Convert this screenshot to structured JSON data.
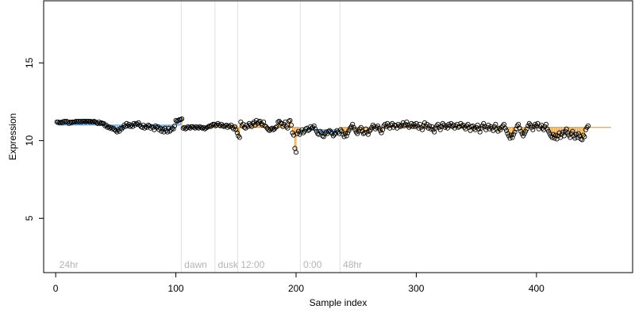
{
  "chart_data": {
    "type": "scatter",
    "xlabel": "Sample index",
    "ylabel": "Expression",
    "xlim": [
      -10,
      480
    ],
    "ylim": [
      1.5,
      19
    ],
    "x_ticks": [
      {
        "value": 0,
        "label": "0"
      },
      {
        "value": 100,
        "label": "100"
      },
      {
        "value": 200,
        "label": "200"
      },
      {
        "value": 300,
        "label": "300"
      },
      {
        "value": 400,
        "label": "400"
      }
    ],
    "y_ticks": [
      {
        "value": 5,
        "label": "5"
      },
      {
        "value": 10,
        "label": "10"
      },
      {
        "value": 15,
        "label": "15"
      }
    ],
    "grid": false,
    "segments": [
      {
        "label": "24hr",
        "start": 1,
        "end": 104
      },
      {
        "label": "dawn",
        "start": 105,
        "end": 132
      },
      {
        "label": "dusk",
        "start": 133,
        "end": 151
      },
      {
        "label": "12:00",
        "start": 152,
        "end": 203
      },
      {
        "label": "0:00",
        "start": 204,
        "end": 236
      },
      {
        "label": "48hr",
        "start": 237,
        "end": 462
      }
    ],
    "baselines": [
      {
        "start": 1,
        "end": 104,
        "value": 11.0
      },
      {
        "start": 105,
        "end": 132,
        "value": 10.85
      },
      {
        "start": 133,
        "end": 151,
        "value": 10.95
      },
      {
        "start": 152,
        "end": 203,
        "value": 10.85
      },
      {
        "start": 204,
        "end": 236,
        "value": 10.7
      },
      {
        "start": 237,
        "end": 462,
        "value": 10.85
      }
    ],
    "point_count": 462,
    "series": [
      {
        "y": [
          11.2,
          11.2,
          11.15,
          11.15,
          11.2,
          11.15,
          11.25,
          11.2,
          11.25,
          11.2,
          11.1,
          11.2,
          11.15,
          11.2,
          11.2,
          11.2,
          11.25,
          11.2,
          11.25,
          11.2,
          11.25,
          11.2,
          11.25,
          11.25,
          11.2,
          11.25,
          11.25,
          11.2,
          11.25,
          11.2,
          11.2,
          11.25,
          11.2,
          11.15,
          11.1,
          11.2,
          11.1,
          11.15,
          11.1,
          11.1,
          10.95,
          11.0,
          10.85,
          10.9,
          10.8,
          10.85,
          10.75,
          10.8,
          10.7,
          10.65,
          10.55,
          10.7,
          10.6,
          10.8,
          10.75,
          10.85,
          11.0,
          10.9,
          11.1,
          10.95,
          11.05,
          10.9,
          11.0,
          10.9,
          11.1,
          11.0,
          11.1,
          11.05,
          11.15,
          11.0,
          10.9,
          10.85,
          11.0,
          10.8,
          10.9,
          10.85,
          11.0,
          10.95,
          10.8,
          10.9,
          10.85,
          10.7,
          10.95,
          10.85,
          10.9,
          10.7,
          10.8,
          10.6,
          10.75,
          10.55,
          10.8,
          10.65,
          10.55,
          10.8,
          10.6,
          10.7,
          10.8,
          10.75,
          10.95,
          11.3,
          11.25,
          11.3,
          11.35,
          11.35,
          11.4,
          10.8,
          10.85,
          10.75,
          10.8,
          10.9,
          10.85,
          10.8,
          10.9,
          10.9,
          10.85,
          10.8,
          10.9,
          10.85,
          10.8,
          10.9,
          10.85,
          10.8,
          10.85,
          10.75,
          10.8,
          10.85,
          10.9,
          10.95,
          10.9,
          11.0,
          11.05,
          11.05,
          10.95,
          11.0,
          11.1,
          11.0,
          10.95,
          11.05,
          10.95,
          10.9,
          10.95,
          11.0,
          10.85,
          10.95,
          10.9,
          11.0,
          10.85,
          10.75,
          10.9,
          10.7,
          10.5,
          10.3,
          10.2,
          11.2,
          10.95,
          11.05,
          10.85,
          10.8,
          11.0,
          10.9,
          11.1,
          11.0,
          10.9,
          11.1,
          11.2,
          11.0,
          11.3,
          11.1,
          11.2,
          11.25,
          11.1,
          11.0,
          11.2,
          10.95,
          10.9,
          10.8,
          10.7,
          10.65,
          10.75,
          10.8,
          10.7,
          10.75,
          10.85,
          10.9,
          11.2,
          11.25,
          11.15,
          11.1,
          10.9,
          11.05,
          11.2,
          10.9,
          10.8,
          11.25,
          11.3,
          11.0,
          10.5,
          10.35,
          9.5,
          9.25,
          10.45,
          10.6,
          10.4,
          10.55,
          10.7,
          10.5,
          10.6,
          10.75,
          10.8,
          10.65,
          10.7,
          10.9,
          10.8,
          10.85,
          10.95,
          10.75,
          10.6,
          10.45,
          10.4,
          10.6,
          10.5,
          10.3,
          10.25,
          10.45,
          10.55,
          10.45,
          10.6,
          10.65,
          10.55,
          10.45,
          10.3,
          10.4,
          10.5,
          10.65,
          10.55,
          10.45,
          10.7,
          10.6,
          10.4,
          10.25,
          10.45,
          10.3,
          10.5,
          10.65,
          10.8,
          10.9,
          11.05,
          10.85,
          10.7,
          10.55,
          10.45,
          10.6,
          10.75,
          10.85,
          10.6,
          10.45,
          10.5,
          10.75,
          10.55,
          10.4,
          10.6,
          10.7,
          10.85,
          11.0,
          10.9,
          10.75,
          10.85,
          10.95,
          10.8,
          10.65,
          10.5,
          10.7,
          10.95,
          11.05,
          10.9,
          11.1,
          10.95,
          10.8,
          11.0,
          11.1,
          10.85,
          11.0,
          10.95,
          10.8,
          11.05,
          10.95,
          10.9,
          11.0,
          11.15,
          10.95,
          11.05,
          11.2,
          11.0,
          10.85,
          10.95,
          11.1,
          10.9,
          11.05,
          10.9,
          11.1,
          10.95,
          10.8,
          11.05,
          10.85,
          10.7,
          10.95,
          11.15,
          10.9,
          11.05,
          10.8,
          10.95,
          10.75,
          10.9,
          10.7,
          10.55,
          10.8,
          10.95,
          11.05,
          10.85,
          10.7,
          10.9,
          11.1,
          11.0,
          10.85,
          10.95,
          10.8,
          11.05,
          10.95,
          11.1,
          10.9,
          11.0,
          10.8,
          10.95,
          11.05,
          10.85,
          10.9,
          11.1,
          10.95,
          11.0,
          10.85,
          10.75,
          10.95,
          11.05,
          10.85,
          10.65,
          10.9,
          10.95,
          10.8,
          10.7,
          10.85,
          11.0,
          10.75,
          10.55,
          10.8,
          10.95,
          11.1,
          10.9,
          10.7,
          10.85,
          11.0,
          10.75,
          10.9,
          10.8,
          10.65,
          10.9,
          11.05,
          10.75,
          10.6,
          10.8,
          10.7,
          10.85,
          10.95,
          11.05,
          10.8,
          10.65,
          10.45,
          10.3,
          10.15,
          10.35,
          10.2,
          10.4,
          10.55,
          10.75,
          10.95,
          11.05,
          10.8,
          10.6,
          10.45,
          10.3,
          10.45,
          10.6,
          10.75,
          10.95,
          11.1,
          11.0,
          10.85,
          10.7,
          10.9,
          11.05,
          10.95,
          11.1,
          10.75,
          10.9,
          11.0,
          10.8,
          10.7,
          10.9,
          11.05,
          10.75,
          10.6,
          10.45,
          10.3,
          10.2,
          10.4,
          10.15,
          10.35,
          10.1,
          10.3,
          10.5,
          10.2,
          10.4,
          10.55,
          10.3,
          10.6,
          10.75,
          10.5,
          10.35,
          10.2,
          10.45,
          10.6,
          10.3,
          10.15,
          10.4,
          10.2,
          10.45,
          10.3,
          10.1,
          10.05,
          10.35,
          10.25,
          10.7,
          10.85,
          10.95
        ]
      }
    ]
  }
}
